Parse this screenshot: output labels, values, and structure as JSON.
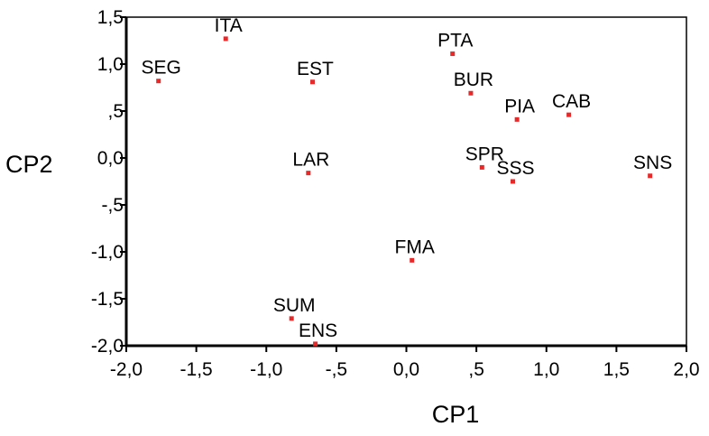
{
  "chart_data": {
    "type": "scatter",
    "title": "",
    "xlabel": "CP1",
    "ylabel": "CP2",
    "xlim": [
      -2.0,
      2.0
    ],
    "ylim": [
      -2.0,
      1.5
    ],
    "grid": false,
    "legend": "none",
    "x_ticks": [
      {
        "value": -2.0,
        "label": "-2,0"
      },
      {
        "value": -1.5,
        "label": "-1,5"
      },
      {
        "value": -1.0,
        "label": "-1,0"
      },
      {
        "value": -0.5,
        "label": "-,5"
      },
      {
        "value": 0.0,
        "label": "0,0"
      },
      {
        "value": 0.5,
        "label": ",5"
      },
      {
        "value": 1.0,
        "label": "1,0"
      },
      {
        "value": 1.5,
        "label": "1,5"
      },
      {
        "value": 2.0,
        "label": "2,0"
      }
    ],
    "y_ticks": [
      {
        "value": 1.5,
        "label": "1,5"
      },
      {
        "value": 1.0,
        "label": "1,0"
      },
      {
        "value": 0.5,
        "label": ",5"
      },
      {
        "value": 0.0,
        "label": "0,0"
      },
      {
        "value": -0.5,
        "label": "-,5"
      },
      {
        "value": -1.0,
        "label": "-1,0"
      },
      {
        "value": -1.5,
        "label": "-1,5"
      },
      {
        "value": -2.0,
        "label": "-2,0"
      }
    ],
    "points": [
      {
        "label": "ITA",
        "x": -1.29,
        "y": 1.27
      },
      {
        "label": "SEG",
        "x": -1.77,
        "y": 0.82
      },
      {
        "label": "EST",
        "x": -0.67,
        "y": 0.81
      },
      {
        "label": "PTA",
        "x": 0.33,
        "y": 1.11
      },
      {
        "label": "BUR",
        "x": 0.46,
        "y": 0.69
      },
      {
        "label": "PIA",
        "x": 0.79,
        "y": 0.41
      },
      {
        "label": "CAB",
        "x": 1.16,
        "y": 0.46
      },
      {
        "label": "LAR",
        "x": -0.7,
        "y": -0.16
      },
      {
        "label": "SPR",
        "x": 0.54,
        "y": -0.1
      },
      {
        "label": "SSS",
        "x": 0.76,
        "y": -0.25
      },
      {
        "label": "SNS",
        "x": 1.74,
        "y": -0.19
      },
      {
        "label": "FMA",
        "x": 0.04,
        "y": -1.09
      },
      {
        "label": "SUM",
        "x": -0.82,
        "y": -1.71
      },
      {
        "label": "ENS",
        "x": -0.65,
        "y": -1.98
      }
    ],
    "marker_color": "#e8292a"
  }
}
